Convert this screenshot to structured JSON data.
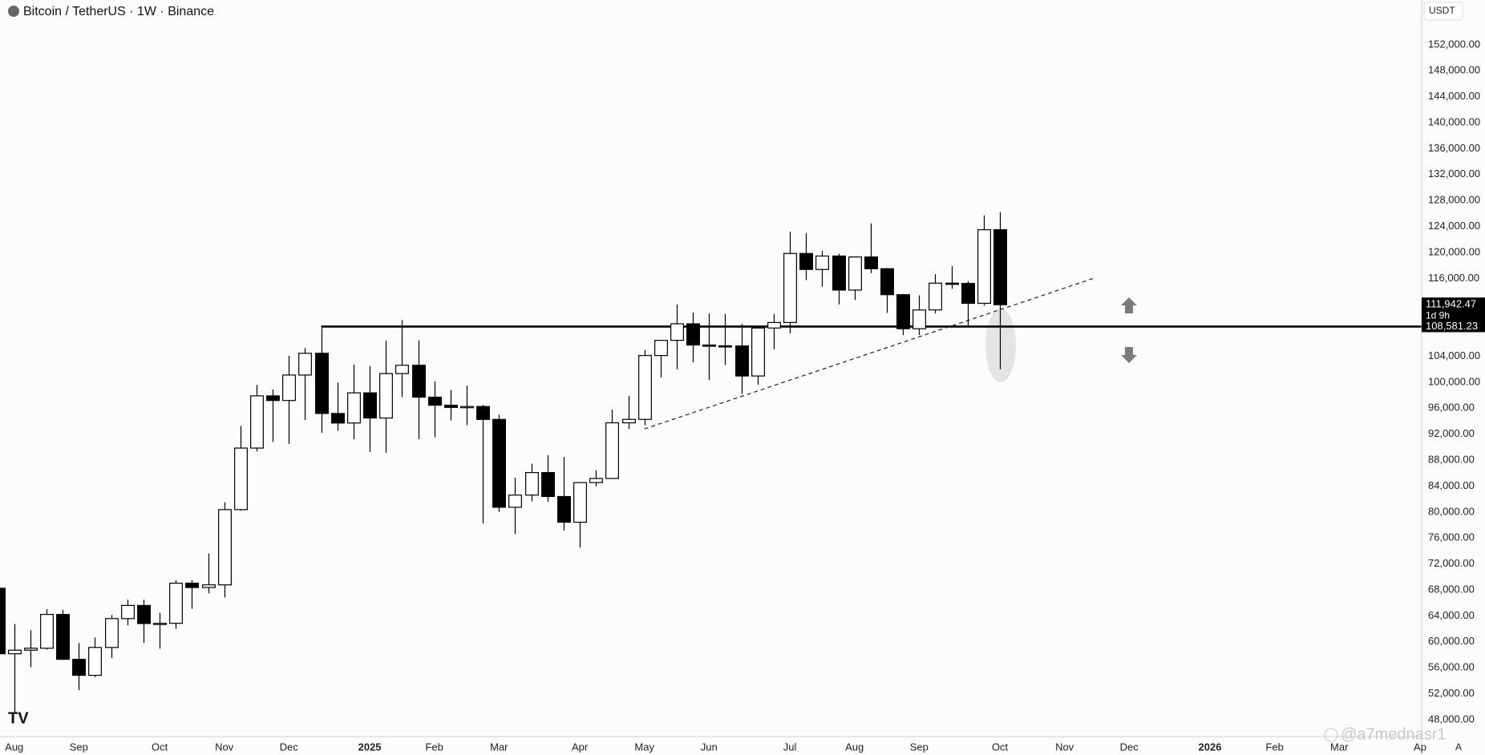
{
  "chart_data": {
    "type": "candlestick",
    "title": "Bitcoin / TetherUS · 1W · Binance",
    "currency": "USDT",
    "scale_button": "A",
    "watermark": "@a7mednasr1",
    "up_color": "#ffffff",
    "down_color": "#000000",
    "grid": false,
    "xlim": [
      0.12,
      88.1
    ],
    "ylim": [
      45400,
      158900
    ],
    "xticks": [
      {
        "value": 1,
        "label": "Aug"
      },
      {
        "value": 5,
        "label": "Sep"
      },
      {
        "value": 10,
        "label": "Oct"
      },
      {
        "value": 14,
        "label": "Nov"
      },
      {
        "value": 18,
        "label": "Dec"
      },
      {
        "value": 23,
        "label": "2025"
      },
      {
        "value": 27,
        "label": "Feb"
      },
      {
        "value": 31,
        "label": "Mar"
      },
      {
        "value": 36,
        "label": "Apr"
      },
      {
        "value": 40,
        "label": "May"
      },
      {
        "value": 44,
        "label": "Jun"
      },
      {
        "value": 49,
        "label": "Jul"
      },
      {
        "value": 53,
        "label": "Aug"
      },
      {
        "value": 57,
        "label": "Sep"
      },
      {
        "value": 62,
        "label": "Oct"
      },
      {
        "value": 66,
        "label": "Nov"
      },
      {
        "value": 70,
        "label": "Dec"
      },
      {
        "value": 75,
        "label": "2026"
      },
      {
        "value": 79,
        "label": "Feb"
      },
      {
        "value": 83,
        "label": "Mar"
      },
      {
        "value": 88,
        "label": "Ap"
      }
    ],
    "yticks": [
      {
        "value": 48000,
        "label": "48,000.00"
      },
      {
        "value": 52000,
        "label": "52,000.00"
      },
      {
        "value": 56000,
        "label": "56,000.00"
      },
      {
        "value": 60000,
        "label": "60,000.00"
      },
      {
        "value": 64000,
        "label": "64,000.00"
      },
      {
        "value": 68000,
        "label": "68,000.00"
      },
      {
        "value": 72000,
        "label": "72,000.00"
      },
      {
        "value": 76000,
        "label": "76,000.00"
      },
      {
        "value": 80000,
        "label": "80,000.00"
      },
      {
        "value": 84000,
        "label": "84,000.00"
      },
      {
        "value": 88000,
        "label": "88,000.00"
      },
      {
        "value": 92000,
        "label": "92,000.00"
      },
      {
        "value": 96000,
        "label": "96,000.00"
      },
      {
        "value": 100000,
        "label": "100,000.00"
      },
      {
        "value": 104000,
        "label": "104,000.00"
      },
      {
        "value": 116000,
        "label": "116,000.00"
      },
      {
        "value": 120000,
        "label": "120,000.00"
      },
      {
        "value": 124000,
        "label": "124,000.00"
      },
      {
        "value": 128000,
        "label": "128,000.00"
      },
      {
        "value": 132000,
        "label": "132,000.00"
      },
      {
        "value": 136000,
        "label": "136,000.00"
      },
      {
        "value": 140000,
        "label": "140,000.00"
      },
      {
        "value": 144000,
        "label": "144,000.00"
      },
      {
        "value": 148000,
        "label": "148,000.00"
      },
      {
        "value": 152000,
        "label": "152,000.00"
      }
    ],
    "open": [
      68249,
      58161,
      58712,
      59012,
      64220,
      57301,
      54841,
      59132,
      63578,
      65602,
      62819,
      62851,
      69032,
      68368,
      68775,
      80370,
      89855,
      97900,
      97185,
      101109,
      104463,
      95186,
      93716,
      98363,
      94488,
      101335,
      102620,
      97700,
      96462,
      96118,
      96258,
      94270,
      80734,
      82610,
      86082,
      82390,
      78430,
      84539,
      85170,
      93749,
      94277,
      104118,
      106454,
      109004,
      105734,
      105616,
      105595,
      100963,
      108356,
      109203,
      119841,
      117380,
      119448,
      114200,
      119306,
      117491,
      113490,
      108246,
      111137,
      115268,
      115232,
      112163,
      123500
    ],
    "high": [
      70079,
      62745,
      61800,
      65050,
      64962,
      59809,
      60670,
      64133,
      66498,
      66480,
      64478,
      69500,
      69520,
      73620,
      81500,
      93265,
      99588,
      98871,
      104088,
      105250,
      108353,
      99962,
      102724,
      102480,
      106422,
      109588,
      106457,
      100137,
      98826,
      99475,
      96500,
      95000,
      85309,
      87453,
      88765,
      88500,
      83588,
      86429,
      95758,
      97895,
      104984,
      105819,
      111980,
      110718,
      110600,
      110530,
      109000,
      108528,
      110529,
      123218,
      123000,
      120247,
      119800,
      119311,
      124474,
      117600,
      113600,
      113384,
      116665,
      117900,
      115600,
      125708,
      126199
    ],
    "low": [
      57122,
      49000,
      56078,
      58783,
      57201,
      52550,
      54565,
      57493,
      62538,
      59828,
      58946,
      62000,
      65089,
      67478,
      66835,
      80216,
      89376,
      90791,
      90500,
      94150,
      92175,
      92520,
      91214,
      89256,
      89142,
      97700,
      91231,
      91530,
      94088,
      93388,
      78258,
      80000,
      76606,
      81634,
      81565,
      77153,
      74508,
      83949,
      85145,
      92800,
      93377,
      100718,
      102000,
      103068,
      100372,
      102664,
      98200,
      99612,
      105100,
      107500,
      115736,
      114723,
      112000,
      112650,
      116803,
      110680,
      107255,
      107270,
      110600,
      114400,
      108650,
      111800,
      102000
    ],
    "close": [
      58161,
      58712,
      59012,
      64220,
      57301,
      54841,
      59132,
      63578,
      65602,
      62819,
      62851,
      69032,
      68368,
      68775,
      80370,
      89855,
      97900,
      97185,
      101109,
      104463,
      95186,
      93716,
      98363,
      94488,
      101335,
      102620,
      97700,
      96462,
      96118,
      96258,
      94270,
      80734,
      82610,
      86082,
      82390,
      78430,
      84539,
      85170,
      93749,
      94277,
      104118,
      106454,
      109004,
      105734,
      105616,
      105595,
      100963,
      108356,
      109203,
      119841,
      117380,
      119448,
      114200,
      119306,
      117491,
      113490,
      108246,
      111137,
      115268,
      115232,
      112163,
      123500,
      111942.47
    ],
    "last_price": {
      "value": 111942.47,
      "label": "111,942.47",
      "countdown": "1d 9h"
    },
    "level": {
      "value": 108581.23,
      "label": "108,581.23",
      "x": 20
    },
    "trendline": {
      "x": [
        40,
        67.9
      ],
      "y": [
        92800,
        116100
      ]
    }
  }
}
